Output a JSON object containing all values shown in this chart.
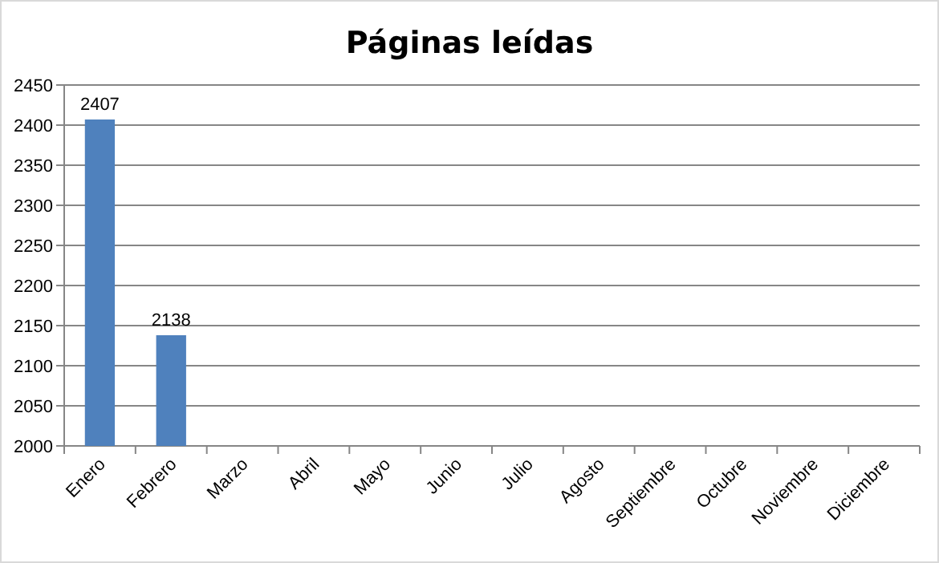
{
  "chart_data": {
    "type": "bar",
    "title": "Páginas leídas",
    "categories": [
      "Enero",
      "Febrero",
      "Marzo",
      "Abril",
      "Mayo",
      "Junio",
      "Julio",
      "Agosto",
      "Septiembre",
      "Octubre",
      "Noviembre",
      "Diciembre"
    ],
    "values": [
      2407,
      2138,
      null,
      null,
      null,
      null,
      null,
      null,
      null,
      null,
      null,
      null
    ],
    "color": "#4f81bd",
    "ylim": [
      2000,
      2450
    ],
    "yticks": [
      2000,
      2050,
      2100,
      2150,
      2200,
      2250,
      2300,
      2350,
      2400,
      2450
    ],
    "grid": "y",
    "data_labels": true
  }
}
